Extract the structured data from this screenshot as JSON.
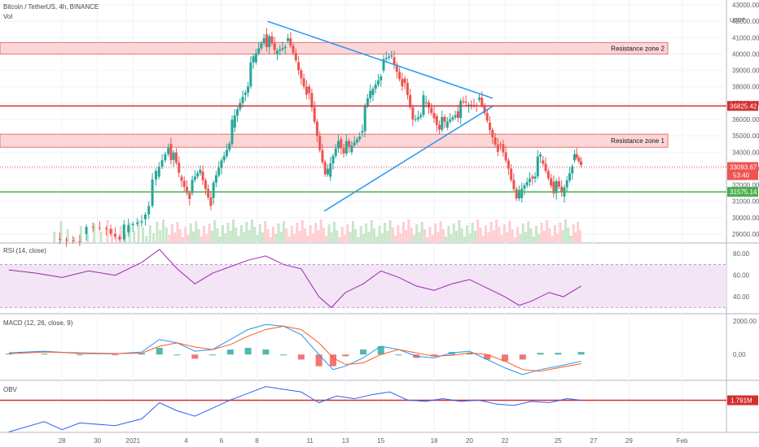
{
  "header": {
    "title": "Bitcoin / TetherUS, 4h, BINANCE",
    "vol_label": "Vol",
    "currency": "USDT"
  },
  "panes": {
    "rsi_label": "RSI (14, close)",
    "macd_label": "MACD (12, 26, close, 9)",
    "obv_label": "OBV"
  },
  "colors": {
    "up": "#26a69a",
    "down": "#ef5350",
    "trendline": "#2196f3",
    "resistance_line": "#d32f2f",
    "support_line": "#4caf50",
    "zone_fill": "#fcd6d6",
    "zone_border": "#e57373",
    "rsi_line": "#9c27b0",
    "rsi_band": "#f3e5f5",
    "macd_line": "#2196f3",
    "signal_line": "#ff5722",
    "obv_line": "#2962ff"
  },
  "chart_data": {
    "type": "candlestick",
    "x_ticks": [
      "28",
      "30",
      "2021",
      "4",
      "6",
      "8",
      "11",
      "13",
      "15",
      "18",
      "20",
      "22",
      "25",
      "27",
      "29",
      "Feb"
    ],
    "x_tick_days": [
      -4,
      -2,
      0,
      3,
      5,
      7,
      10,
      12,
      14,
      17,
      19,
      21,
      24,
      26,
      28,
      31
    ],
    "x_range_days": [
      -7.5,
      33.5
    ],
    "price_axis": {
      "ticks": [
        29000,
        30000,
        31000,
        32000,
        33000,
        34000,
        35000,
        36000,
        37000,
        38000,
        39000,
        40000,
        41000,
        42000,
        43000
      ],
      "ylim": [
        28500,
        43300
      ]
    },
    "last_price": {
      "value": 33093.67,
      "label": "33093.67",
      "countdown": "53:40"
    },
    "horizontal_levels": [
      {
        "label": "36825.42",
        "value": 36825.42,
        "kind": "resistance"
      },
      {
        "label": "31575.14",
        "value": 31575.14,
        "kind": "support"
      }
    ],
    "zones": [
      {
        "name": "Resistance zone 2",
        "from": 40000,
        "to": 40700
      },
      {
        "name": "Resistance zone 1",
        "from": 34300,
        "to": 35100
      }
    ],
    "trendlines": [
      {
        "points": [
          [
            7.6,
            42000
          ],
          [
            20.3,
            37300
          ]
        ]
      },
      {
        "points": [
          [
            10.8,
            30400
          ],
          [
            20.3,
            36800
          ]
        ]
      }
    ],
    "price_series": [
      {
        "day": -4.5,
        "close": 28700
      },
      {
        "day": -3.0,
        "close": 29000
      },
      {
        "day": -1.5,
        "close": 29300
      },
      {
        "day": -0.5,
        "close": 29100
      },
      {
        "day": 0.5,
        "close": 29900
      },
      {
        "day": 1.3,
        "close": 32500
      },
      {
        "day": 2.0,
        "close": 34500
      },
      {
        "day": 2.6,
        "close": 32500
      },
      {
        "day": 3.2,
        "close": 31500
      },
      {
        "day": 3.8,
        "close": 32800
      },
      {
        "day": 4.4,
        "close": 31200
      },
      {
        "day": 5.0,
        "close": 33500
      },
      {
        "day": 5.6,
        "close": 35500
      },
      {
        "day": 6.2,
        "close": 37500
      },
      {
        "day": 6.8,
        "close": 39500
      },
      {
        "day": 7.4,
        "close": 41200
      },
      {
        "day": 8.0,
        "close": 40000
      },
      {
        "day": 8.6,
        "close": 40800
      },
      {
        "day": 9.2,
        "close": 39500
      },
      {
        "day": 9.8,
        "close": 38000
      },
      {
        "day": 10.4,
        "close": 35000
      },
      {
        "day": 11.0,
        "close": 32500
      },
      {
        "day": 11.6,
        "close": 34800
      },
      {
        "day": 12.2,
        "close": 34000
      },
      {
        "day": 12.8,
        "close": 35200
      },
      {
        "day": 13.4,
        "close": 37500
      },
      {
        "day": 14.0,
        "close": 39000
      },
      {
        "day": 14.6,
        "close": 39800
      },
      {
        "day": 15.2,
        "close": 38500
      },
      {
        "day": 15.8,
        "close": 36000
      },
      {
        "day": 16.4,
        "close": 37000
      },
      {
        "day": 17.0,
        "close": 36200
      },
      {
        "day": 17.6,
        "close": 35500
      },
      {
        "day": 18.2,
        "close": 36500
      },
      {
        "day": 18.8,
        "close": 36800
      },
      {
        "day": 19.4,
        "close": 37200
      },
      {
        "day": 20.0,
        "close": 35800
      },
      {
        "day": 20.6,
        "close": 34500
      },
      {
        "day": 21.2,
        "close": 33000
      },
      {
        "day": 21.8,
        "close": 31200
      },
      {
        "day": 22.4,
        "close": 32500
      },
      {
        "day": 23.0,
        "close": 33500
      },
      {
        "day": 23.6,
        "close": 32200
      },
      {
        "day": 24.2,
        "close": 31300
      },
      {
        "day": 24.8,
        "close": 33500
      },
      {
        "day": 25.3,
        "close": 33093.67
      }
    ],
    "rsi": {
      "ticks": [
        40,
        60,
        80
      ],
      "ylim": [
        25,
        90
      ],
      "band": [
        30,
        70
      ],
      "values": [
        {
          "day": -7.0,
          "v": 65
        },
        {
          "day": -5.5,
          "v": 62
        },
        {
          "day": -4.0,
          "v": 58
        },
        {
          "day": -2.5,
          "v": 64
        },
        {
          "day": -1.0,
          "v": 60
        },
        {
          "day": 0.5,
          "v": 72
        },
        {
          "day": 1.5,
          "v": 84
        },
        {
          "day": 2.5,
          "v": 66
        },
        {
          "day": 3.5,
          "v": 52
        },
        {
          "day": 4.5,
          "v": 62
        },
        {
          "day": 5.5,
          "v": 68
        },
        {
          "day": 6.5,
          "v": 74
        },
        {
          "day": 7.5,
          "v": 78
        },
        {
          "day": 8.5,
          "v": 70
        },
        {
          "day": 9.5,
          "v": 66
        },
        {
          "day": 10.5,
          "v": 40
        },
        {
          "day": 11.2,
          "v": 30
        },
        {
          "day": 12.0,
          "v": 44
        },
        {
          "day": 13.0,
          "v": 52
        },
        {
          "day": 14.0,
          "v": 64
        },
        {
          "day": 15.0,
          "v": 58
        },
        {
          "day": 16.0,
          "v": 50
        },
        {
          "day": 17.0,
          "v": 46
        },
        {
          "day": 18.0,
          "v": 52
        },
        {
          "day": 19.0,
          "v": 56
        },
        {
          "day": 20.0,
          "v": 48
        },
        {
          "day": 21.0,
          "v": 40
        },
        {
          "day": 21.8,
          "v": 32
        },
        {
          "day": 22.5,
          "v": 36
        },
        {
          "day": 23.5,
          "v": 44
        },
        {
          "day": 24.3,
          "v": 40
        },
        {
          "day": 25.3,
          "v": 50
        }
      ]
    },
    "macd": {
      "ticks": [
        {
          "label": "2000.00",
          "v": 2000
        },
        {
          "label": "0.00",
          "v": 0
        }
      ],
      "ylim": [
        -1500,
        2400
      ],
      "line": [
        {
          "day": -7.0,
          "v": 100
        },
        {
          "day": -5.0,
          "v": 200
        },
        {
          "day": -3.0,
          "v": 60
        },
        {
          "day": -1.0,
          "v": 40
        },
        {
          "day": 0.5,
          "v": 150
        },
        {
          "day": 1.5,
          "v": 900
        },
        {
          "day": 2.5,
          "v": 700
        },
        {
          "day": 3.5,
          "v": 200
        },
        {
          "day": 4.5,
          "v": 300
        },
        {
          "day": 5.5,
          "v": 900
        },
        {
          "day": 6.5,
          "v": 1500
        },
        {
          "day": 7.5,
          "v": 1800
        },
        {
          "day": 8.5,
          "v": 1700
        },
        {
          "day": 9.5,
          "v": 1200
        },
        {
          "day": 10.5,
          "v": 0
        },
        {
          "day": 11.3,
          "v": -900
        },
        {
          "day": 12.0,
          "v": -700
        },
        {
          "day": 13.0,
          "v": -200
        },
        {
          "day": 14.0,
          "v": 500
        },
        {
          "day": 15.0,
          "v": 300
        },
        {
          "day": 16.0,
          "v": -100
        },
        {
          "day": 17.0,
          "v": -200
        },
        {
          "day": 18.0,
          "v": 100
        },
        {
          "day": 19.0,
          "v": 200
        },
        {
          "day": 20.0,
          "v": -300
        },
        {
          "day": 21.0,
          "v": -800
        },
        {
          "day": 22.0,
          "v": -1200
        },
        {
          "day": 23.0,
          "v": -900
        },
        {
          "day": 24.0,
          "v": -700
        },
        {
          "day": 25.3,
          "v": -400
        }
      ],
      "signal": [
        {
          "day": -7.0,
          "v": 50
        },
        {
          "day": -5.0,
          "v": 150
        },
        {
          "day": -3.0,
          "v": 100
        },
        {
          "day": -1.0,
          "v": 60
        },
        {
          "day": 0.5,
          "v": 80
        },
        {
          "day": 1.5,
          "v": 500
        },
        {
          "day": 2.5,
          "v": 700
        },
        {
          "day": 3.5,
          "v": 450
        },
        {
          "day": 4.5,
          "v": 300
        },
        {
          "day": 5.5,
          "v": 600
        },
        {
          "day": 6.5,
          "v": 1100
        },
        {
          "day": 7.5,
          "v": 1500
        },
        {
          "day": 8.5,
          "v": 1700
        },
        {
          "day": 9.5,
          "v": 1500
        },
        {
          "day": 10.5,
          "v": 700
        },
        {
          "day": 11.3,
          "v": -200
        },
        {
          "day": 12.0,
          "v": -600
        },
        {
          "day": 13.0,
          "v": -500
        },
        {
          "day": 14.0,
          "v": 0
        },
        {
          "day": 15.0,
          "v": 300
        },
        {
          "day": 16.0,
          "v": 100
        },
        {
          "day": 17.0,
          "v": -100
        },
        {
          "day": 18.0,
          "v": -50
        },
        {
          "day": 19.0,
          "v": 100
        },
        {
          "day": 20.0,
          "v": 0
        },
        {
          "day": 21.0,
          "v": -400
        },
        {
          "day": 22.0,
          "v": -900
        },
        {
          "day": 23.0,
          "v": -1000
        },
        {
          "day": 24.0,
          "v": -800
        },
        {
          "day": 25.3,
          "v": -550
        }
      ]
    },
    "obv": {
      "last_label": "1.791M",
      "level_value": 1.791,
      "ylim": [
        0.6,
        2.5
      ],
      "values": [
        {
          "day": -7.0,
          "v": 0.62
        },
        {
          "day": -5.0,
          "v": 1.0
        },
        {
          "day": -4.0,
          "v": 0.7
        },
        {
          "day": -3.0,
          "v": 0.95
        },
        {
          "day": -1.0,
          "v": 0.85
        },
        {
          "day": 0.5,
          "v": 1.1
        },
        {
          "day": 1.5,
          "v": 1.7
        },
        {
          "day": 2.5,
          "v": 1.4
        },
        {
          "day": 3.5,
          "v": 1.2
        },
        {
          "day": 4.5,
          "v": 1.5
        },
        {
          "day": 5.5,
          "v": 1.8
        },
        {
          "day": 6.5,
          "v": 2.05
        },
        {
          "day": 7.5,
          "v": 2.3
        },
        {
          "day": 8.5,
          "v": 2.2
        },
        {
          "day": 9.5,
          "v": 2.1
        },
        {
          "day": 10.5,
          "v": 1.7
        },
        {
          "day": 11.5,
          "v": 1.95
        },
        {
          "day": 12.5,
          "v": 1.85
        },
        {
          "day": 13.5,
          "v": 2.0
        },
        {
          "day": 14.5,
          "v": 2.1
        },
        {
          "day": 15.5,
          "v": 1.8
        },
        {
          "day": 16.5,
          "v": 1.75
        },
        {
          "day": 17.5,
          "v": 1.85
        },
        {
          "day": 18.5,
          "v": 1.75
        },
        {
          "day": 19.5,
          "v": 1.8
        },
        {
          "day": 20.5,
          "v": 1.65
        },
        {
          "day": 21.5,
          "v": 1.6
        },
        {
          "day": 22.5,
          "v": 1.75
        },
        {
          "day": 23.5,
          "v": 1.7
        },
        {
          "day": 24.5,
          "v": 1.85
        },
        {
          "day": 25.3,
          "v": 1.791
        }
      ]
    }
  }
}
